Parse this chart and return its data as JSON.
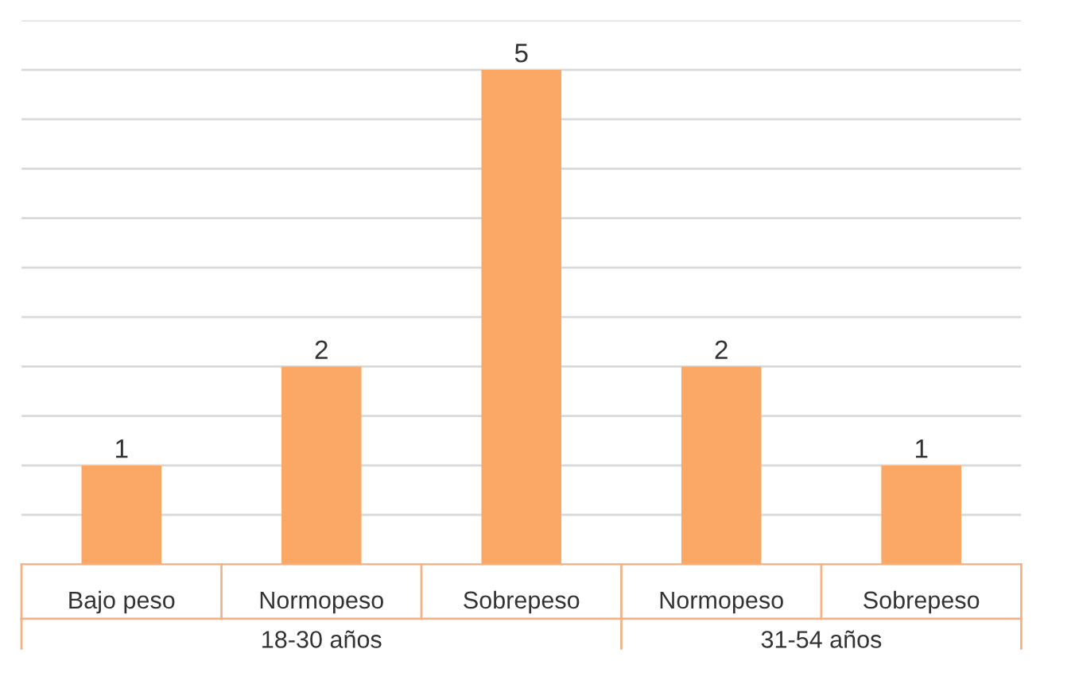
{
  "chart_data": {
    "type": "bar",
    "categories": [
      "Bajo peso",
      "Normopeso",
      "Sobrepeso",
      "Normopeso",
      "Sobrepeso"
    ],
    "values": [
      1,
      2,
      5,
      2,
      1
    ],
    "color": "#fba765",
    "data_labels": true,
    "ylim": [
      0,
      5.5
    ],
    "yticks": [
      {
        "value": 0,
        "label": null
      },
      {
        "value": 0.5,
        "label": null
      },
      {
        "value": 1,
        "label": null
      },
      {
        "value": 1.5,
        "label": null
      },
      {
        "value": 2,
        "label": null
      },
      {
        "value": 2.5,
        "label": null
      },
      {
        "value": 3,
        "label": null
      },
      {
        "value": 3.5,
        "label": null
      },
      {
        "value": 4,
        "label": null
      },
      {
        "value": 4.5,
        "label": null
      },
      {
        "value": 5,
        "label": null
      },
      {
        "value": 5.5,
        "label": null
      }
    ],
    "grid": "y",
    "tick_labels": "x",
    "annotations": [
      "18-30 años",
      "31-54 años"
    ]
  }
}
